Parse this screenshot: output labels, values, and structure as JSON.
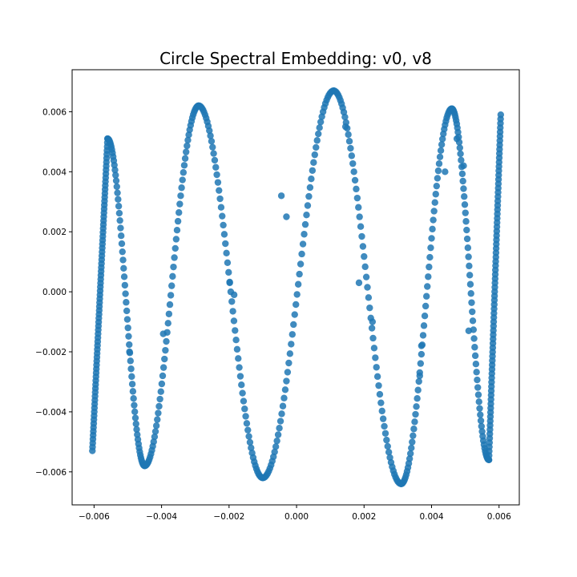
{
  "chart_data": {
    "type": "scatter",
    "title": "Circle Spectral Embedding: v0, v8",
    "xlabel": "",
    "ylabel": "",
    "xlim": [
      -0.00665,
      0.0066
    ],
    "ylim": [
      -0.0071,
      0.0074
    ],
    "xticks": [
      -0.006,
      -0.004,
      -0.002,
      0.0,
      0.002,
      0.004,
      0.006
    ],
    "xtick_labels": [
      "−0.006",
      "−0.004",
      "−0.002",
      "0.000",
      "0.002",
      "0.004",
      "0.006"
    ],
    "yticks": [
      -0.006,
      -0.004,
      -0.002,
      0.0,
      0.002,
      0.004,
      0.006
    ],
    "ytick_labels": [
      "−0.006",
      "−0.004",
      "−0.002",
      "0.000",
      "0.002",
      "0.004",
      "0.006"
    ],
    "grid": false,
    "marker_color": "#1f77b4",
    "x_limit": 0.00605,
    "amplitudes": [
      [
        -0.00605,
        -0.0053
      ],
      [
        -0.0056,
        0.0051
      ],
      [
        -0.0045,
        -0.0058
      ],
      [
        -0.0029,
        0.0062
      ],
      [
        -0.001,
        -0.0062
      ],
      [
        0.0011,
        0.0067
      ],
      [
        0.0031,
        -0.0064
      ],
      [
        0.0046,
        0.0061
      ],
      [
        0.0057,
        -0.0056
      ],
      [
        0.00605,
        0.0059
      ]
    ],
    "sparse_points": [
      [
        -0.00495,
        -0.002
      ],
      [
        -0.00395,
        -0.0014
      ],
      [
        -0.00198,
        0.0003
      ],
      [
        -0.00185,
        -0.0001
      ],
      [
        -0.00045,
        0.0032
      ],
      [
        -0.0003,
        0.0025
      ],
      [
        0.00145,
        0.0055
      ],
      [
        0.00225,
        -0.001
      ],
      [
        0.00185,
        0.0003
      ],
      [
        0.00365,
        -0.0028
      ],
      [
        0.0037,
        -0.0018
      ],
      [
        0.0044,
        0.004
      ],
      [
        0.00475,
        0.0051
      ],
      [
        0.00495,
        0.0042
      ],
      [
        0.0051,
        -0.0013
      ]
    ]
  }
}
